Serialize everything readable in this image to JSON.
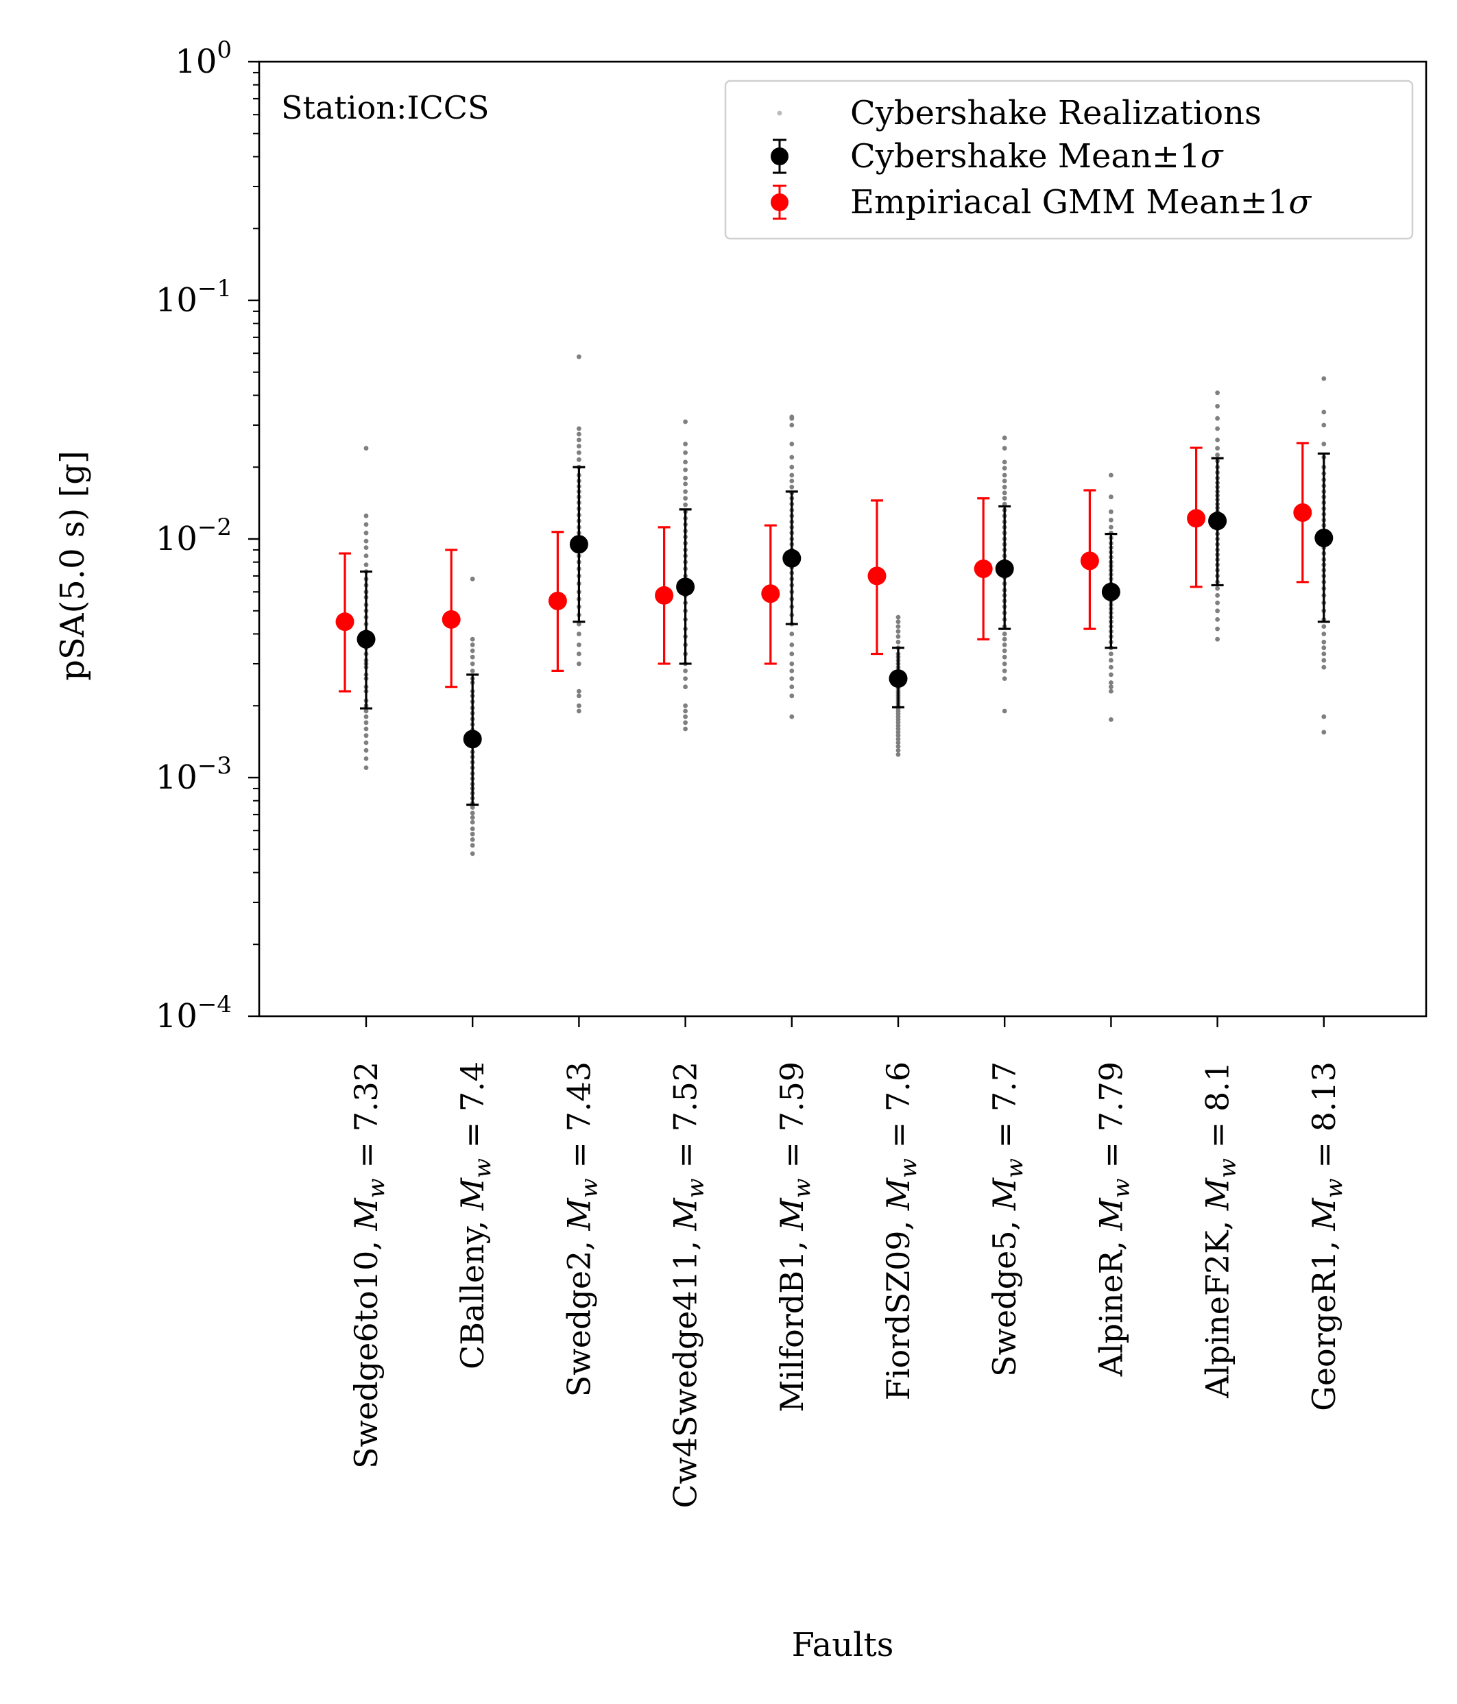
{
  "chart_data": {
    "type": "scatter",
    "annotation": "Station:ICCS",
    "xlabel": "Faults",
    "ylabel": "pSA(5.0 s) [g]",
    "yscale": "log",
    "ylim": [
      0.0001,
      1
    ],
    "yticks": [
      {
        "value": 1,
        "mantissa": "10",
        "exponent": "0"
      },
      {
        "value": 0.1,
        "mantissa": "10",
        "exponent": "−1"
      },
      {
        "value": 0.01,
        "mantissa": "10",
        "exponent": "−2"
      },
      {
        "value": 0.001,
        "mantissa": "10",
        "exponent": "−3"
      },
      {
        "value": 0.0001,
        "mantissa": "10",
        "exponent": "−4"
      }
    ],
    "categories": [
      {
        "fault": "Swedge6to10",
        "mw": "7.32"
      },
      {
        "fault": "CBalleny",
        "mw": "7.4"
      },
      {
        "fault": "Swedge2",
        "mw": "7.43"
      },
      {
        "fault": "Cw4Swedge411",
        "mw": "7.52"
      },
      {
        "fault": "MilfordB1",
        "mw": "7.59"
      },
      {
        "fault": "FiordSZ09",
        "mw": "7.6"
      },
      {
        "fault": "Swedge5",
        "mw": "7.7"
      },
      {
        "fault": "AlpineR",
        "mw": "7.79"
      },
      {
        "fault": "AlpineF2K",
        "mw": "8.1"
      },
      {
        "fault": "GeorgeR1",
        "mw": "8.13"
      }
    ],
    "legend": {
      "position": "upper right",
      "entries": [
        {
          "label": "Cybershake Realizations",
          "color": "#bbbbbb"
        },
        {
          "label": "Cybershake Mean±1",
          "symbol": "σ",
          "color": "#000000"
        },
        {
          "label": "Empiriacal GMM Mean±1",
          "symbol": "σ",
          "color": "#ff0000"
        }
      ]
    },
    "series": [
      {
        "name": "Cybershake Mean±1σ",
        "color": "#000000",
        "mean": [
          0.0038,
          0.00145,
          0.0095,
          0.0063,
          0.0083,
          0.0026,
          0.0075,
          0.006,
          0.0119,
          0.0101
        ],
        "lower": [
          0.00195,
          0.00077,
          0.0045,
          0.003,
          0.0044,
          0.00197,
          0.0042,
          0.0035,
          0.0064,
          0.0045
        ],
        "upper": [
          0.0073,
          0.0027,
          0.02,
          0.0133,
          0.0158,
          0.0035,
          0.0137,
          0.0105,
          0.0218,
          0.0228
        ]
      },
      {
        "name": "Empiriacal GMM Mean±1σ",
        "color": "#ff0000",
        "mean": [
          0.0045,
          0.0046,
          0.0055,
          0.0058,
          0.0059,
          0.007,
          0.0075,
          0.0081,
          0.0122,
          0.0129
        ],
        "lower": [
          0.0023,
          0.0024,
          0.0028,
          0.003,
          0.003,
          0.0033,
          0.0038,
          0.0042,
          0.0063,
          0.0066
        ],
        "upper": [
          0.0087,
          0.009,
          0.0107,
          0.0112,
          0.0114,
          0.0145,
          0.0148,
          0.016,
          0.0241,
          0.0252
        ]
      }
    ],
    "realizations": [
      [
        0.0011,
        0.0012,
        0.0013,
        0.0014,
        0.0015,
        0.0016,
        0.0017,
        0.0018,
        0.0019,
        0.002,
        0.0021,
        0.0023,
        0.0024,
        0.0026,
        0.0027,
        0.0029,
        0.003,
        0.0031,
        0.0033,
        0.0035,
        0.0037,
        0.0039,
        0.0041,
        0.0044,
        0.0047,
        0.005,
        0.0053,
        0.0057,
        0.006,
        0.0064,
        0.0068,
        0.0073,
        0.0078,
        0.0085,
        0.0092,
        0.0098,
        0.0106,
        0.0115,
        0.0125,
        0.024
      ],
      [
        0.00048,
        0.00052,
        0.00055,
        0.00058,
        0.00061,
        0.00065,
        0.00068,
        0.00071,
        0.00075,
        0.00078,
        0.00082,
        0.00086,
        0.0009,
        0.00094,
        0.00099,
        0.00104,
        0.0011,
        0.00116,
        0.00122,
        0.00128,
        0.00135,
        0.00142,
        0.0015,
        0.00158,
        0.00167,
        0.00176,
        0.00186,
        0.00196,
        0.00208,
        0.0022,
        0.0023,
        0.0025,
        0.0026,
        0.0028,
        0.003,
        0.0032,
        0.0034,
        0.0036,
        0.0038,
        0.0068
      ],
      [
        0.0019,
        0.002,
        0.0022,
        0.0023,
        0.003,
        0.0033,
        0.0036,
        0.004,
        0.0044,
        0.0048,
        0.0052,
        0.0056,
        0.006,
        0.0065,
        0.007,
        0.0075,
        0.008,
        0.0085,
        0.009,
        0.0095,
        0.01,
        0.0106,
        0.0112,
        0.0119,
        0.0126,
        0.0134,
        0.0142,
        0.015,
        0.0158,
        0.0166,
        0.0175,
        0.0185,
        0.02,
        0.0215,
        0.023,
        0.0245,
        0.026,
        0.0275,
        0.029,
        0.058
      ],
      [
        0.0016,
        0.0017,
        0.0018,
        0.0019,
        0.002,
        0.0024,
        0.0026,
        0.0028,
        0.003,
        0.0033,
        0.0036,
        0.0039,
        0.0042,
        0.0046,
        0.005,
        0.0054,
        0.0058,
        0.0062,
        0.0066,
        0.007,
        0.0075,
        0.008,
        0.0085,
        0.009,
        0.0096,
        0.0102,
        0.0108,
        0.0115,
        0.0122,
        0.013,
        0.0139,
        0.0148,
        0.0158,
        0.017,
        0.018,
        0.0195,
        0.021,
        0.023,
        0.025,
        0.031
      ],
      [
        0.0018,
        0.0022,
        0.0024,
        0.0026,
        0.0028,
        0.003,
        0.0033,
        0.0036,
        0.004,
        0.0044,
        0.0048,
        0.0052,
        0.0056,
        0.006,
        0.0064,
        0.0068,
        0.0072,
        0.0076,
        0.008,
        0.0085,
        0.009,
        0.0095,
        0.01,
        0.0106,
        0.0112,
        0.0118,
        0.0125,
        0.0132,
        0.014,
        0.0148,
        0.0156,
        0.0165,
        0.0175,
        0.0185,
        0.02,
        0.022,
        0.025,
        0.03,
        0.032,
        0.0325
      ],
      [
        0.00125,
        0.0013,
        0.00135,
        0.0014,
        0.00145,
        0.0015,
        0.00155,
        0.0016,
        0.00165,
        0.0017,
        0.00175,
        0.0018,
        0.00185,
        0.0019,
        0.00195,
        0.002,
        0.00205,
        0.0021,
        0.00215,
        0.0022,
        0.00225,
        0.0023,
        0.00237,
        0.00245,
        0.00253,
        0.0026,
        0.0027,
        0.0028,
        0.0029,
        0.003,
        0.0031,
        0.0032,
        0.0033,
        0.0035,
        0.0037,
        0.0039,
        0.0041,
        0.0043,
        0.0045,
        0.0047
      ],
      [
        0.0019,
        0.0026,
        0.0028,
        0.003,
        0.0032,
        0.0034,
        0.0036,
        0.0038,
        0.004,
        0.0043,
        0.0046,
        0.0049,
        0.0052,
        0.0055,
        0.0058,
        0.0061,
        0.0065,
        0.0069,
        0.0073,
        0.0077,
        0.0081,
        0.0085,
        0.009,
        0.0095,
        0.01,
        0.0106,
        0.0112,
        0.0118,
        0.0125,
        0.0132,
        0.014,
        0.0148,
        0.0156,
        0.0165,
        0.0175,
        0.0185,
        0.0198,
        0.021,
        0.024,
        0.0265
      ],
      [
        0.00175,
        0.0023,
        0.0024,
        0.0025,
        0.0027,
        0.0029,
        0.0031,
        0.0033,
        0.0035,
        0.0037,
        0.0039,
        0.0041,
        0.0043,
        0.0045,
        0.0047,
        0.0049,
        0.0051,
        0.0053,
        0.0055,
        0.0057,
        0.0059,
        0.0061,
        0.0063,
        0.0065,
        0.0068,
        0.0071,
        0.0074,
        0.0077,
        0.008,
        0.0084,
        0.0088,
        0.0092,
        0.0096,
        0.0101,
        0.0106,
        0.0112,
        0.012,
        0.013,
        0.015,
        0.0185
      ],
      [
        0.0038,
        0.0042,
        0.0046,
        0.005,
        0.0054,
        0.0058,
        0.0062,
        0.0066,
        0.007,
        0.0074,
        0.0078,
        0.0082,
        0.0086,
        0.009,
        0.0095,
        0.01,
        0.0105,
        0.011,
        0.0115,
        0.012,
        0.0125,
        0.013,
        0.0135,
        0.014,
        0.0146,
        0.0152,
        0.0158,
        0.0165,
        0.0172,
        0.018,
        0.019,
        0.02,
        0.0212,
        0.0225,
        0.024,
        0.026,
        0.029,
        0.032,
        0.036,
        0.041
      ],
      [
        0.00155,
        0.0018,
        0.0029,
        0.0031,
        0.0033,
        0.0035,
        0.0037,
        0.004,
        0.0043,
        0.0046,
        0.005,
        0.0054,
        0.0058,
        0.0062,
        0.0066,
        0.007,
        0.0074,
        0.0078,
        0.0082,
        0.0087,
        0.0092,
        0.0097,
        0.0102,
        0.0108,
        0.0114,
        0.012,
        0.0127,
        0.0134,
        0.0142,
        0.015,
        0.0158,
        0.0167,
        0.0177,
        0.0188,
        0.02,
        0.022,
        0.025,
        0.03,
        0.034,
        0.047
      ]
    ]
  }
}
